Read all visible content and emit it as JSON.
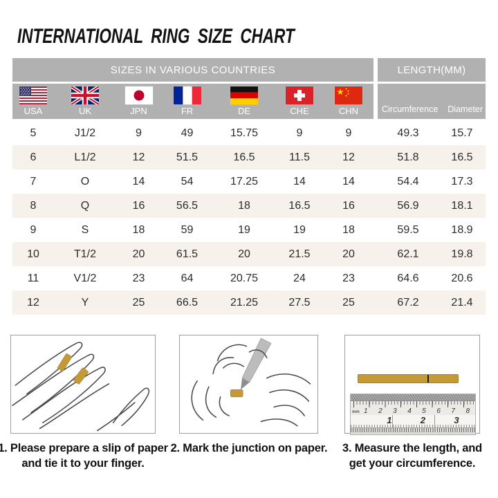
{
  "title": "INTERNATIONAL RING SIZE CHART",
  "chart_data": {
    "type": "table",
    "group_headers": {
      "left": "SIZES IN VARIOUS COUNTRIES",
      "right": "LENGTH(MM)"
    },
    "country_columns": [
      {
        "label": "USA",
        "flag": "usa-flag"
      },
      {
        "label": "UK",
        "flag": "uk-flag"
      },
      {
        "label": "JPN",
        "flag": "japan-flag"
      },
      {
        "label": "FR",
        "flag": "france-flag"
      },
      {
        "label": "DE",
        "flag": "germany-flag"
      },
      {
        "label": "CHE",
        "flag": "switzerland-flag"
      },
      {
        "label": "CHN",
        "flag": "china-flag"
      }
    ],
    "length_columns": [
      "Circumference",
      "Diameter"
    ],
    "rows": [
      [
        "5",
        "J1/2",
        "9",
        "49",
        "15.75",
        "9",
        "9",
        "49.3",
        "15.7"
      ],
      [
        "6",
        "L1/2",
        "12",
        "51.5",
        "16.5",
        "11.5",
        "12",
        "51.8",
        "16.5"
      ],
      [
        "7",
        "O",
        "14",
        "54",
        "17.25",
        "14",
        "14",
        "54.4",
        "17.3"
      ],
      [
        "8",
        "Q",
        "16",
        "56.5",
        "18",
        "16.5",
        "16",
        "56.9",
        "18.1"
      ],
      [
        "9",
        "S",
        "18",
        "59",
        "19",
        "19",
        "18",
        "59.5",
        "18.9"
      ],
      [
        "10",
        "T1/2",
        "20",
        "61.5",
        "20",
        "21.5",
        "20",
        "62.1",
        "19.8"
      ],
      [
        "11",
        "V1/2",
        "23",
        "64",
        "20.75",
        "24",
        "23",
        "64.6",
        "20.6"
      ],
      [
        "12",
        "Y",
        "25",
        "66.5",
        "21.25",
        "27.5",
        "25",
        "67.2",
        "21.4"
      ]
    ]
  },
  "instructions": {
    "steps": [
      {
        "lines": [
          "1. Please prepare a slip of paper",
          "and tie it to your finger."
        ]
      },
      {
        "lines": [
          "2. Mark the junction on paper."
        ]
      },
      {
        "lines": [
          "3. Measure the length, and",
          "get your circumference."
        ]
      }
    ]
  },
  "ruler": {
    "unit_label": "mm",
    "cm_numbers": [
      "1",
      "2",
      "3",
      "4",
      "5",
      "6",
      "7",
      "8"
    ],
    "inch_numbers": [
      "1",
      "2",
      "3"
    ]
  },
  "colors": {
    "header_gray": "#B1B1B2",
    "row_alt_beige": "#F7F1EC",
    "paper_gold": "#C49A39",
    "title_black": "#121212"
  }
}
